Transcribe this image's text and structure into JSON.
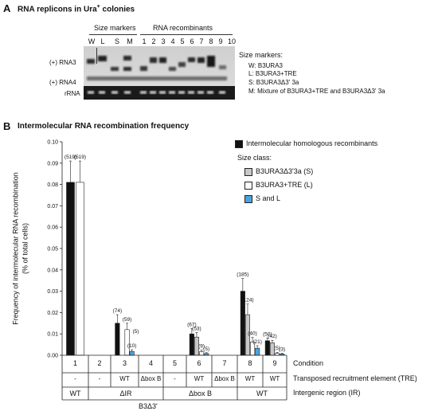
{
  "panelA": {
    "letter": "A",
    "title": "RNA replicons in Ura",
    "title_sup": "+",
    "title_tail": " colonies",
    "size_markers_header": "Size markers",
    "rna_recombinants_header": "RNA recombinants",
    "marker_lanes": [
      "W",
      "L",
      "S",
      "M"
    ],
    "recombinant_lanes": [
      "1",
      "2",
      "3",
      "4",
      "5",
      "6",
      "7",
      "8",
      "9",
      "10"
    ],
    "rna3_label": "(+) RNA3",
    "rna4_label": "(+) RNA4",
    "rrna_label": "rRNA",
    "legend_title": "Size markers:",
    "legend": [
      "W: B3URA3",
      "L:  B3URA3+TRE",
      "S:  B3URA3Δ3' 3a",
      "M: Mixture of B3URA3+TRE and B3URA3Δ3' 3a"
    ]
  },
  "panelB": {
    "letter": "B",
    "title": "Intermolecular RNA recombination frequency",
    "ylabel_line1": "Frequency of intermolecular RNA recombination",
    "ylabel_line2": "(% of total cells)",
    "legend_main": "Intermolecular homologous recombinants",
    "legend_sizeclass": "Size class:",
    "legend_items": [
      "B3URA3Δ3'3a (S)",
      "B3URA3+TRE (L)",
      "S and  L"
    ],
    "row_condition_label": "Condition",
    "row_tre_label": "Transposed recruitment element (TRE)",
    "row_ir_label": "Intergenic region (IR)",
    "conditions": [
      "1",
      "2",
      "3",
      "4",
      "5",
      "6",
      "7",
      "8",
      "9"
    ],
    "tre": [
      "-",
      "-",
      "WT",
      "Δbox B",
      "-",
      "WT",
      "Δbox B",
      "WT",
      "WT"
    ],
    "ir_groups": [
      "WT",
      "ΔIR",
      "Δbox B",
      "WT"
    ],
    "footer": "B3Δ3'"
  },
  "colors": {
    "black": "#111111",
    "gray": "#c8c8c8",
    "white": "#ffffff",
    "blue": "#4aa3df"
  },
  "chart_data": {
    "type": "bar",
    "categories": [
      "1",
      "2",
      "3",
      "4",
      "5",
      "6",
      "7",
      "8",
      "9"
    ],
    "ylim": [
      0,
      0.1
    ],
    "yticks": [
      "0.00",
      "0.01",
      "0.02",
      "0.03",
      "0.04",
      "0.05",
      "0.06",
      "0.07",
      "0.08",
      "0.09",
      "0.10"
    ],
    "series": [
      {
        "name": "Intermolecular homologous recombinants",
        "color": "#111111",
        "values": [
          0.081,
          0,
          0.015,
          0,
          0,
          0.01,
          0,
          0.03,
          0.0068
        ],
        "labels": [
          "(519)",
          "",
          "(74)",
          "",
          "",
          "(67)",
          "",
          "(185)",
          "(50)"
        ]
      },
      {
        "name": "B3URA3Δ3'3a (S)",
        "color": "#c8c8c8",
        "values": [
          0,
          0,
          0,
          0,
          0,
          0.0085,
          0,
          0.019,
          0.0058
        ],
        "labels": [
          "",
          "",
          "",
          "",
          "",
          "(53)",
          "",
          "(124)",
          "(42)"
        ]
      },
      {
        "name": "B3URA3+TRE (L)",
        "color": "#ffffff",
        "values": [
          0.081,
          0,
          0.012,
          0,
          0,
          0.0016,
          0,
          0.0062,
          0.0009
        ],
        "labels": [
          "(519)",
          "",
          "(59)",
          "",
          "",
          "(9)",
          "",
          "(40)",
          "(5)"
        ]
      },
      {
        "name": "S and  L",
        "color": "#4aa3df",
        "values": [
          0,
          0,
          0.0018,
          0,
          0,
          0.0008,
          0,
          0.0033,
          0.0006
        ],
        "labels": [
          "",
          "",
          "(10)",
          "",
          "",
          "(5)",
          "",
          "(21)",
          "(3)"
        ]
      }
    ],
    "extra_labels": {
      "2": "(5)"
    },
    "errors": [
      [
        0.01,
        0,
        0.004,
        0,
        0,
        0.0025,
        0,
        0.006,
        0.0012
      ],
      [
        0,
        0,
        0,
        0,
        0,
        0.0022,
        0,
        0.005,
        0.0012
      ],
      [
        0.01,
        0,
        0.003,
        0,
        0,
        0.0008,
        0,
        0.0022,
        0.0005
      ],
      [
        0,
        0,
        0.0008,
        0,
        0,
        0.0004,
        0,
        0.0012,
        0.0003
      ]
    ]
  }
}
